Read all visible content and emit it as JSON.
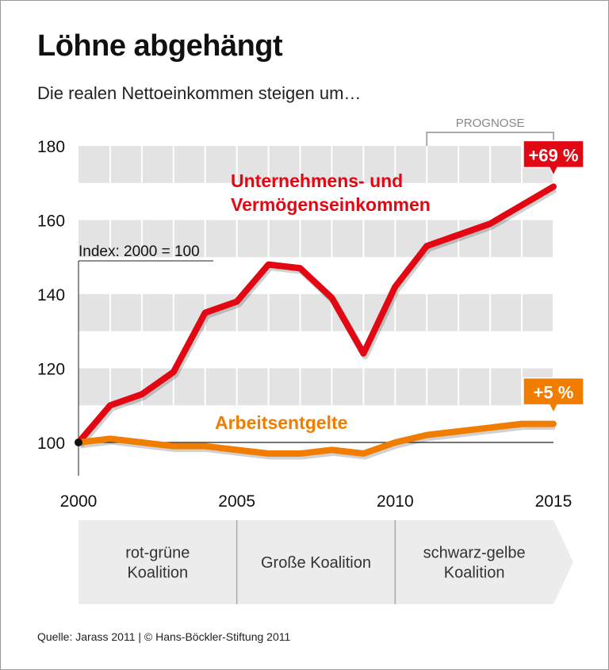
{
  "title": "Löhne abgehängt",
  "subtitle": "Die realen Nettoeinkommen steigen um…",
  "source": "Quelle: Jarass 2011 | © Hans-Böckler-Stiftung 2011",
  "chart_data": {
    "type": "line",
    "x": [
      2000,
      2001,
      2002,
      2003,
      2004,
      2005,
      2006,
      2007,
      2008,
      2009,
      2010,
      2011,
      2012,
      2013,
      2014,
      2015
    ],
    "xticks": [
      "2000",
      "2005",
      "2010",
      "2015"
    ],
    "yticks": [
      "100",
      "120",
      "140",
      "160",
      "180"
    ],
    "ylim": [
      91,
      180
    ],
    "index_note": "Index: 2000 = 100",
    "forecast_label": "PROGNOSE",
    "forecast_from": 2011,
    "series": [
      {
        "name_lines": [
          "Unternehmens- und",
          "Vermögenseinkommen"
        ],
        "color": "#e30613",
        "values": [
          100,
          110,
          113,
          119,
          135,
          138,
          148,
          147,
          139,
          124,
          142,
          153,
          156,
          159,
          164,
          169
        ],
        "end_label": "+69 %"
      },
      {
        "name_lines": [
          "Arbeitsentgelte"
        ],
        "color": "#f07d00",
        "values": [
          100,
          101,
          100,
          99,
          99,
          98,
          97,
          97,
          98,
          97,
          100,
          102,
          103,
          104,
          105,
          105
        ],
        "end_label": "+5 %"
      }
    ],
    "periods": [
      {
        "lines": [
          "rot-grüne",
          "Koalition"
        ],
        "from": 2000,
        "to": 2005
      },
      {
        "lines": [
          "Große Koalition"
        ],
        "from": 2005,
        "to": 2010
      },
      {
        "lines": [
          "schwarz-gelbe",
          "Koalition"
        ],
        "from": 2010,
        "to": 2015
      }
    ],
    "grid": true
  }
}
